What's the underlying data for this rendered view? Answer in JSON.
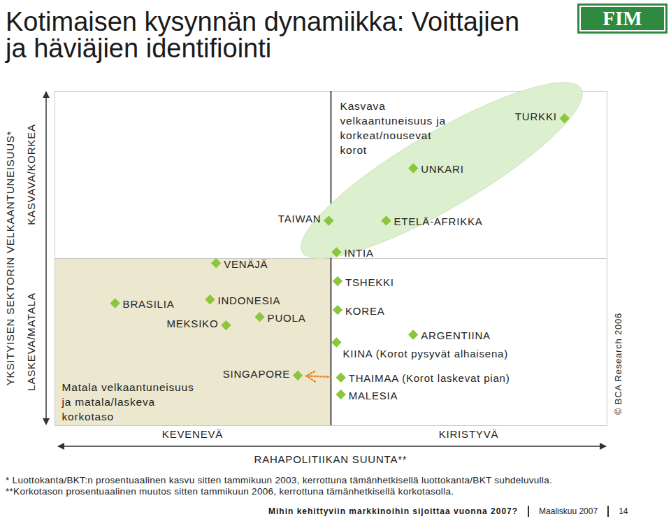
{
  "chart_data": {
    "type": "scatter",
    "title": "Kotimaisen kysynnän dynamiikka: Voittajien ja häviäjien identifiointi",
    "xlabel": "RAHAPOLITIIKAN SUUNTA**",
    "ylabel": "YKSITYISEN SEKTORIN VELKAANTUNEISUUS*",
    "x_ends": [
      "KEVENEVÄ",
      "KIRISTYVÄ"
    ],
    "y_ends": [
      "LASKEVA/MATALA",
      "KASVAVA/KORKEA"
    ],
    "xlim": [
      0,
      100
    ],
    "ylim": [
      0,
      100
    ],
    "xticks": [],
    "yticks": [],
    "tick_labels": false,
    "grid": false,
    "marker": "diamond",
    "color": "#8cc63f",
    "quadrants": {
      "upper_right": [
        "Kasvava",
        "velkaantuneisuus ja",
        "korkeat/nousevat",
        "korot"
      ],
      "lower_left": [
        "Matala velkaantuneisuus",
        "ja matala/laskeva",
        "korkotaso"
      ]
    },
    "points": [
      {
        "label": "TURKKI",
        "x": 92.3,
        "y": 91.9
      },
      {
        "label": "UNKARI",
        "x": 64.9,
        "y": 77.0
      },
      {
        "label": "ETELÄ-AFRIKKA",
        "x": 60.0,
        "y": 61.3
      },
      {
        "label": "TAIWAN",
        "x": 49.6,
        "y": 61.3
      },
      {
        "label": "INTIA",
        "x": 51.0,
        "y": 51.9
      },
      {
        "label": "TSHEKKI",
        "x": 51.2,
        "y": 43.2
      },
      {
        "label": "KOREA",
        "x": 51.2,
        "y": 34.6
      },
      {
        "label": "ARGENTIINA",
        "x": 64.9,
        "y": 27.2
      },
      {
        "label": "KIINA",
        "note": "(Korot pysyvät alhaisena)",
        "x": 51.0,
        "y": 24.9
      },
      {
        "label": "THAIMAA",
        "note": "(Korot laskevat pian)",
        "x": 51.8,
        "y": 14.4
      },
      {
        "label": "MALESIA",
        "x": 51.8,
        "y": 9.3
      },
      {
        "label": "SINGAPORE",
        "x": 44.0,
        "y": 15.0
      },
      {
        "label": "BRASILIA",
        "x": 10.9,
        "y": 36.6
      },
      {
        "label": "VENÄJÄ",
        "x": 29.2,
        "y": 48.6
      },
      {
        "label": "INDONESIA",
        "x": 28.1,
        "y": 37.7
      },
      {
        "label": "PUOLA",
        "x": 37.1,
        "y": 32.5
      },
      {
        "label": "MEKSIKO",
        "x": 31.0,
        "y": 30.0
      }
    ],
    "highlight": [
      "TURKKI",
      "UNKARI",
      "ETELÄ-AFRIKKA",
      "INTIA"
    ],
    "arrows": [
      {
        "from": "THAIMAA",
        "to": "SINGAPORE"
      }
    ]
  },
  "logo": "FIM",
  "source": "© BCA Research 2006",
  "footnotes": [
    "* Luottokanta/BKT:n prosentuaalinen kasvu sitten tammikuun 2003, kerrottuna tämänhetkisellä luottokanta/BKT suhdeluvulla.",
    "**Korkotason prosentuaalinen muutos sitten tammikuun 2006, kerrottuna tämänhetkisellä korkotasolla."
  ],
  "footer": [
    "Mihin kehittyviin markkinoihin sijoittaa vuonna 2007?",
    "Maaliskuu 2007",
    "14"
  ]
}
